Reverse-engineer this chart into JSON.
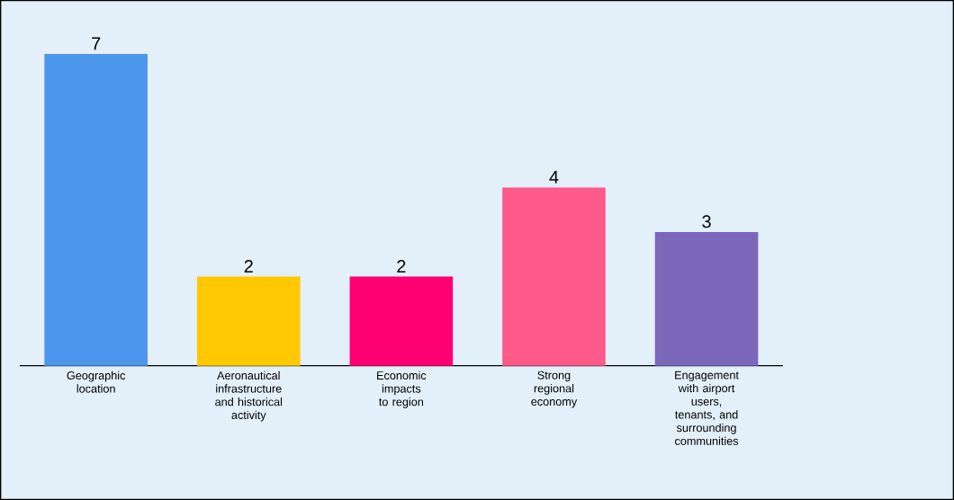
{
  "chart_data": {
    "type": "bar",
    "categories": [
      "Geographic location",
      "Aeronautical infrastructure and historical activity",
      "Economic impacts to region",
      "Strong regional economy",
      "Engagement with airport users, tenants, and surrounding communities"
    ],
    "values": [
      7,
      2,
      2,
      4,
      3
    ],
    "colors": [
      "#4d96ee",
      "#ffc800",
      "#ff0072",
      "#ff5a8a",
      "#7b68bb"
    ],
    "data_labels": true
  }
}
